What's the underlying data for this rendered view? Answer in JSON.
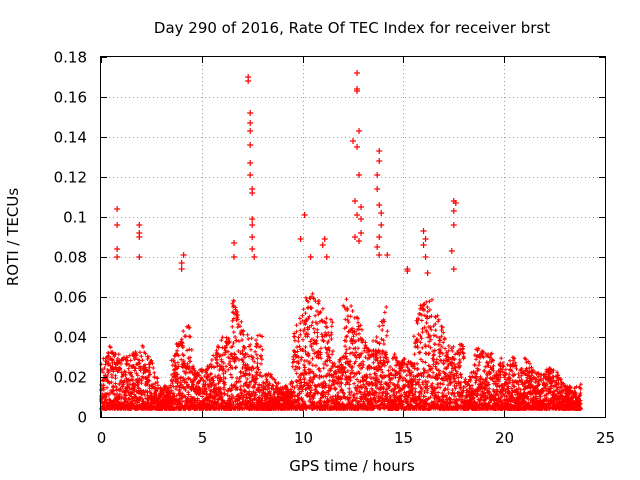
{
  "chart_data": {
    "type": "scatter",
    "title": "Day 290 of 2016, Rate Of TEC Index for receiver brst",
    "xlabel": "GPS time / hours",
    "ylabel": "ROTI / TECUs",
    "xlim": [
      0,
      25
    ],
    "ylim": [
      0,
      0.18
    ],
    "xticks": [
      0,
      5,
      10,
      15,
      20,
      25
    ],
    "xtick_labels": [
      "0",
      "5",
      "10",
      "15",
      "20",
      "25"
    ],
    "yticks": [
      0,
      0.02,
      0.04,
      0.06,
      0.08,
      0.1,
      0.12,
      0.14,
      0.16,
      0.18
    ],
    "ytick_labels": [
      "0",
      "0.02",
      "0.04",
      "0.06",
      "0.08",
      "0.1",
      "0.12",
      "0.14",
      "0.16",
      "0.18"
    ],
    "grid": true,
    "marker": "+",
    "marker_color": "#ff0000",
    "series": [
      {
        "name": "ROTI",
        "points": [
          [
            0.8,
            0.104
          ],
          [
            0.8,
            0.096
          ],
          [
            0.8,
            0.084
          ],
          [
            0.8,
            0.08
          ],
          [
            1.9,
            0.096
          ],
          [
            1.9,
            0.092
          ],
          [
            1.9,
            0.09
          ],
          [
            1.9,
            0.08
          ],
          [
            4.1,
            0.081
          ],
          [
            4.0,
            0.077
          ],
          [
            4.0,
            0.074
          ],
          [
            6.6,
            0.087
          ],
          [
            6.6,
            0.08
          ],
          [
            7.3,
            0.17
          ],
          [
            7.3,
            0.168
          ],
          [
            7.4,
            0.152
          ],
          [
            7.4,
            0.147
          ],
          [
            7.4,
            0.143
          ],
          [
            7.4,
            0.136
          ],
          [
            7.4,
            0.127
          ],
          [
            7.4,
            0.121
          ],
          [
            7.5,
            0.114
          ],
          [
            7.5,
            0.112
          ],
          [
            7.5,
            0.099
          ],
          [
            7.5,
            0.096
          ],
          [
            7.5,
            0.09
          ],
          [
            7.5,
            0.084
          ],
          [
            7.6,
            0.08
          ],
          [
            9.9,
            0.089
          ],
          [
            10.1,
            0.101
          ],
          [
            10.4,
            0.08
          ],
          [
            11.1,
            0.089
          ],
          [
            11.0,
            0.086
          ],
          [
            11.2,
            0.08
          ],
          [
            12.5,
            0.138
          ],
          [
            12.6,
            0.108
          ],
          [
            12.7,
            0.172
          ],
          [
            12.7,
            0.164
          ],
          [
            12.7,
            0.163
          ],
          [
            12.8,
            0.143
          ],
          [
            12.7,
            0.135
          ],
          [
            12.8,
            0.121
          ],
          [
            12.9,
            0.105
          ],
          [
            12.9,
            0.099
          ],
          [
            12.9,
            0.092
          ],
          [
            12.8,
            0.088
          ],
          [
            12.7,
            0.101
          ],
          [
            12.6,
            0.09
          ],
          [
            13.8,
            0.133
          ],
          [
            13.8,
            0.128
          ],
          [
            13.7,
            0.121
          ],
          [
            13.7,
            0.114
          ],
          [
            13.8,
            0.106
          ],
          [
            13.9,
            0.102
          ],
          [
            13.9,
            0.096
          ],
          [
            13.8,
            0.09
          ],
          [
            13.7,
            0.085
          ],
          [
            13.8,
            0.081
          ],
          [
            14.2,
            0.081
          ],
          [
            15.2,
            0.074
          ],
          [
            15.2,
            0.073
          ],
          [
            16.0,
            0.093
          ],
          [
            16.1,
            0.089
          ],
          [
            16.0,
            0.086
          ],
          [
            16.1,
            0.08
          ],
          [
            16.2,
            0.072
          ],
          [
            17.5,
            0.108
          ],
          [
            17.6,
            0.107
          ],
          [
            17.5,
            0.103
          ],
          [
            17.5,
            0.096
          ],
          [
            17.4,
            0.083
          ],
          [
            17.5,
            0.074
          ]
        ]
      }
    ]
  }
}
